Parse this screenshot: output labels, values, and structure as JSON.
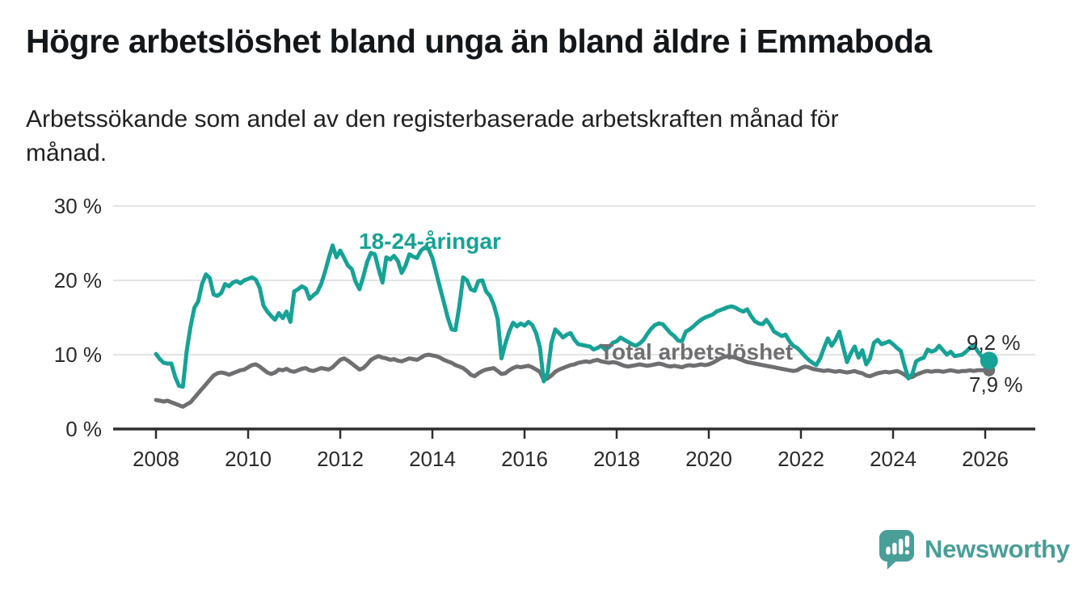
{
  "title": "Högre arbetslöshet bland unga än bland äldre i Emmaboda",
  "subtitle": "Arbetssökande som andel av den registerbaserade arbetskraften månad för månad.",
  "subtitle_lines": {
    "line1": "Arbetssökande som andel av den registerbaserade arbetskraften månad för",
    "line2": "månad."
  },
  "branding": {
    "logo_text": "Newsworthy"
  },
  "colors": {
    "young": "#17a296",
    "total": "#6f6e71",
    "axis": "#2e2e2e",
    "grid": "#dadada",
    "tick_text": "#2b2b2b",
    "logo": "#4a9e98"
  },
  "chart_data": {
    "type": "line",
    "title": "Högre arbetslöshet bland unga än bland äldre i Emmaboda",
    "ylabel": "Arbetssökande som andel av den registerbaserade arbetskraften",
    "ylim": [
      0,
      30
    ],
    "grid": "horizontal",
    "x_start": "2008-01",
    "x_end": "2026-02",
    "x_ticks": [
      {
        "label": "2008",
        "year": 2008
      },
      {
        "label": "2010",
        "year": 2010
      },
      {
        "label": "2012",
        "year": 2012
      },
      {
        "label": "2014",
        "year": 2014
      },
      {
        "label": "2016",
        "year": 2016
      },
      {
        "label": "2018",
        "year": 2018
      },
      {
        "label": "2020",
        "year": 2020
      },
      {
        "label": "2022",
        "year": 2022
      },
      {
        "label": "2024",
        "year": 2024
      },
      {
        "label": "2026",
        "year": 2026
      }
    ],
    "y_ticks": [
      {
        "label": "0 %",
        "value": 0
      },
      {
        "label": "10 %",
        "value": 10
      },
      {
        "label": "20 %",
        "value": 20
      },
      {
        "label": "30 %",
        "value": 30
      }
    ],
    "series": [
      {
        "name": "18-24-åringar",
        "color": "#17a296",
        "end_label": "9,2 %",
        "end_value": 9.2,
        "values": [
          10.1,
          9.4,
          8.9,
          8.8,
          8.8,
          7.0,
          5.8,
          5.7,
          10.5,
          13.8,
          16.3,
          17.2,
          19.5,
          20.8,
          20.3,
          18.1,
          17.9,
          18.3,
          19.5,
          19.2,
          19.7,
          19.9,
          19.6,
          20.0,
          20.2,
          20.4,
          20.1,
          19.0,
          16.6,
          15.8,
          15.2,
          14.7,
          15.6,
          14.9,
          15.8,
          14.4,
          18.5,
          18.8,
          19.2,
          18.9,
          17.5,
          18.0,
          18.4,
          19.5,
          21.1,
          23.0,
          24.7,
          23.1,
          24.0,
          23.0,
          22.0,
          21.5,
          19.8,
          18.8,
          20.5,
          22.5,
          23.7,
          23.5,
          21.5,
          19.7,
          23.1,
          22.8,
          23.3,
          22.6,
          21.0,
          22.0,
          23.5,
          23.2,
          23.0,
          24.0,
          24.4,
          24.2,
          23.0,
          21.0,
          19.0,
          17.0,
          15.0,
          13.4,
          13.3,
          16.5,
          20.4,
          20.0,
          18.8,
          18.6,
          19.9,
          20.0,
          18.5,
          17.9,
          16.7,
          14.8,
          9.5,
          11.5,
          13.1,
          14.3,
          13.8,
          14.2,
          13.9,
          14.4,
          14.0,
          12.9,
          11.0,
          6.4,
          7.5,
          11.6,
          13.4,
          12.9,
          12.3,
          12.7,
          12.9,
          12.0,
          11.4,
          11.3,
          11.2,
          11.1,
          10.7,
          10.9,
          11.2,
          10.7,
          11.0,
          11.6,
          11.8,
          12.3,
          12.0,
          11.7,
          11.4,
          11.2,
          11.5,
          12.0,
          12.8,
          13.5,
          14.0,
          14.2,
          14.1,
          13.5,
          12.9,
          12.5,
          11.9,
          11.8,
          13.1,
          13.4,
          13.8,
          14.3,
          14.7,
          15.0,
          15.2,
          15.4,
          15.8,
          16.0,
          16.2,
          16.4,
          16.5,
          16.3,
          16.0,
          15.8,
          16.1,
          15.2,
          14.5,
          14.2,
          14.1,
          14.7,
          14.0,
          13.1,
          12.8,
          12.5,
          12.7,
          11.8,
          11.2,
          10.9,
          10.4,
          9.8,
          9.3,
          8.9,
          8.6,
          9.5,
          10.9,
          12.2,
          11.2,
          12.0,
          13.1,
          11.0,
          9.0,
          10.2,
          11.1,
          9.6,
          10.6,
          8.7,
          9.5,
          11.6,
          12.0,
          11.4,
          11.6,
          11.8,
          11.4,
          10.9,
          10.5,
          8.5,
          6.8,
          7.4,
          9.1,
          9.4,
          9.6,
          10.7,
          10.4,
          10.6,
          11.2,
          10.6,
          10.0,
          10.4,
          9.8,
          9.9,
          10.0,
          10.4,
          10.9,
          11.3,
          10.5,
          9.8,
          9.5,
          9.2
        ]
      },
      {
        "name": "Total arbetslöshet",
        "color": "#6f6e71",
        "end_label": "7,9 %",
        "end_value": 7.9,
        "values": [
          3.9,
          3.8,
          3.7,
          3.8,
          3.6,
          3.4,
          3.2,
          3.0,
          3.3,
          3.6,
          4.2,
          4.8,
          5.4,
          6.0,
          6.6,
          7.2,
          7.5,
          7.6,
          7.5,
          7.3,
          7.5,
          7.7,
          7.9,
          8.0,
          8.3,
          8.6,
          8.7,
          8.4,
          8.0,
          7.6,
          7.4,
          7.6,
          8.0,
          7.9,
          8.1,
          7.8,
          7.7,
          7.9,
          8.1,
          8.2,
          7.9,
          7.8,
          8.0,
          8.2,
          8.1,
          8.0,
          8.3,
          8.8,
          9.3,
          9.5,
          9.2,
          8.8,
          8.4,
          8.0,
          8.2,
          8.7,
          9.3,
          9.6,
          9.8,
          9.6,
          9.5,
          9.3,
          9.4,
          9.2,
          9.1,
          9.3,
          9.5,
          9.4,
          9.3,
          9.6,
          9.9,
          10.0,
          9.9,
          9.8,
          9.6,
          9.3,
          9.1,
          8.9,
          8.6,
          8.4,
          8.2,
          7.8,
          7.3,
          7.1,
          7.5,
          7.8,
          8.0,
          8.1,
          8.2,
          7.8,
          7.4,
          7.5,
          7.9,
          8.2,
          8.4,
          8.3,
          8.4,
          8.5,
          8.3,
          8.0,
          7.7,
          6.6,
          6.8,
          7.2,
          7.7,
          8.0,
          8.2,
          8.4,
          8.6,
          8.7,
          8.9,
          9.0,
          9.1,
          9.0,
          9.2,
          9.3,
          9.1,
          9.0,
          8.9,
          9.0,
          8.9,
          8.7,
          8.5,
          8.4,
          8.5,
          8.6,
          8.7,
          8.6,
          8.5,
          8.6,
          8.7,
          8.8,
          8.7,
          8.5,
          8.4,
          8.5,
          8.4,
          8.3,
          8.5,
          8.6,
          8.5,
          8.6,
          8.7,
          8.6,
          8.7,
          8.9,
          9.2,
          9.5,
          9.7,
          9.8,
          9.7,
          9.6,
          9.4,
          9.2,
          9.0,
          8.9,
          8.8,
          8.7,
          8.6,
          8.5,
          8.4,
          8.3,
          8.2,
          8.1,
          8.0,
          7.9,
          7.8,
          7.9,
          8.2,
          8.4,
          8.3,
          8.1,
          8.0,
          7.9,
          7.8,
          7.9,
          7.8,
          7.7,
          7.8,
          7.7,
          7.6,
          7.7,
          7.8,
          7.6,
          7.5,
          7.2,
          7.1,
          7.3,
          7.5,
          7.6,
          7.7,
          7.6,
          7.7,
          7.8,
          7.6,
          7.3,
          6.9,
          7.0,
          7.3,
          7.5,
          7.7,
          7.8,
          7.7,
          7.8,
          7.8,
          7.7,
          7.8,
          7.9,
          7.8,
          7.7,
          7.8,
          7.8,
          7.9,
          7.8,
          7.9,
          7.9,
          7.9,
          7.9
        ]
      }
    ]
  }
}
